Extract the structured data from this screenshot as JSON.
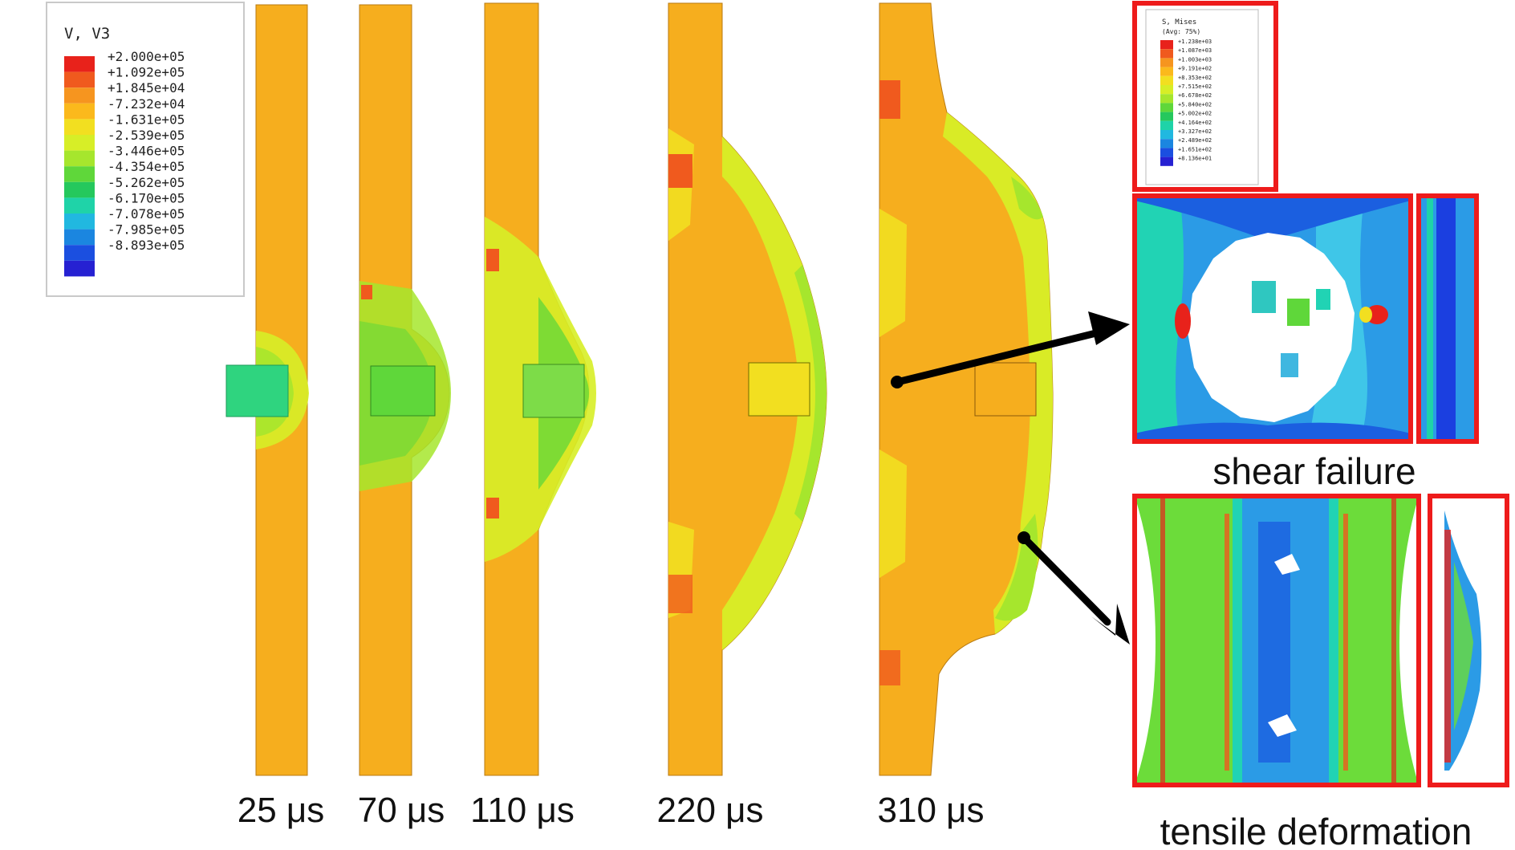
{
  "legend": {
    "title": "V, V3",
    "colors": [
      "#e8221b",
      "#f05a1e",
      "#f6951f",
      "#fbb91c",
      "#f2df20",
      "#d7ee27",
      "#a6e62d",
      "#5fd73a",
      "#25c85d",
      "#1fd3a8",
      "#21b8e0",
      "#1b86e0",
      "#1b4fe0",
      "#2621d2"
    ],
    "values": [
      "+2.000e+05",
      "+1.092e+05",
      "+1.845e+04",
      "-7.232e+04",
      "-1.631e+05",
      "-2.539e+05",
      "-3.446e+05",
      "-4.354e+05",
      "-5.262e+05",
      "-6.170e+05",
      "-7.078e+05",
      "-7.985e+05",
      "-8.893e+05"
    ]
  },
  "frames": [
    {
      "time_label": "25 μs"
    },
    {
      "time_label": "70 μs"
    },
    {
      "time_label": "110 μs"
    },
    {
      "time_label": "220 μs"
    },
    {
      "time_label": "310 μs"
    }
  ],
  "insets": {
    "shear_label": "shear failure",
    "tensile_label": "tensile deformation",
    "mini_legend_title": "S, Mises",
    "mini_legend_subtitle": "(Avg: 75%)",
    "mini_legend_values": [
      "+1.238e+03",
      "+1.087e+03",
      "+1.003e+03",
      "+9.191e+02",
      "+8.353e+02",
      "+7.515e+02",
      "+6.678e+02",
      "+5.840e+02",
      "+5.002e+02",
      "+4.164e+02",
      "+3.327e+02",
      "+2.489e+02",
      "+1.651e+02",
      "+8.136e+01"
    ]
  },
  "colors": {
    "plate": "#f6ae1e",
    "frame_red": "#ee1b1b"
  }
}
